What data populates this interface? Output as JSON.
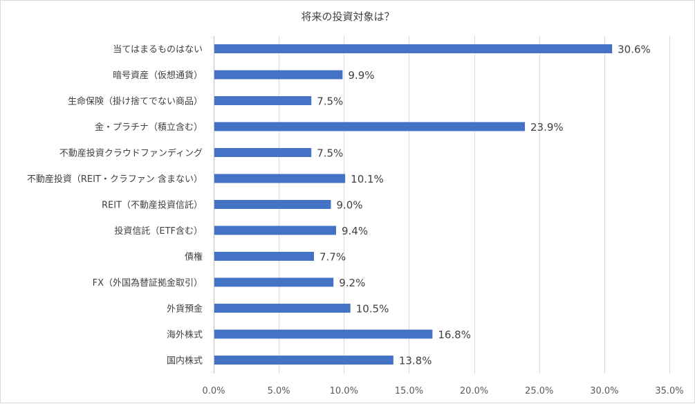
{
  "chart_data": {
    "type": "bar",
    "orientation": "horizontal",
    "title": "将来の投資対象は？",
    "categories": [
      "当てはまるものはない",
      "暗号資産（仮想通貨）",
      "生命保険（掛け捨てでない商品）",
      "金・プラチナ（積立含む）",
      "不動産投資クラウドファンディング",
      "不動産投資（REIT・クラファン 含まない）",
      "REIT（不動産投資信託）",
      "投資信託（ETF含む）",
      "債権",
      "FX（外国為替証拠金取引）",
      "外貨預金",
      "海外株式",
      "国内株式"
    ],
    "values": [
      30.6,
      9.9,
      7.5,
      23.9,
      7.5,
      10.1,
      9.0,
      9.4,
      7.7,
      9.2,
      10.5,
      16.8,
      13.8
    ],
    "value_labels": [
      "30.6%",
      "9.9%",
      "7.5%",
      "23.9%",
      "7.5%",
      "10.1%",
      "9.0%",
      "9.4%",
      "7.7%",
      "9.2%",
      "10.5%",
      "16.8%",
      "13.8%"
    ],
    "xlim": [
      0,
      35
    ],
    "xticks": [
      0,
      5,
      10,
      15,
      20,
      25,
      30,
      35
    ],
    "xtick_labels": [
      "0.0%",
      "5.0%",
      "10.0%",
      "15.0%",
      "20.0%",
      "25.0%",
      "30.0%",
      "35.0%"
    ],
    "bar_color": "#4472c4",
    "grid": true,
    "legend": "none",
    "xlabel": "",
    "ylabel": ""
  }
}
